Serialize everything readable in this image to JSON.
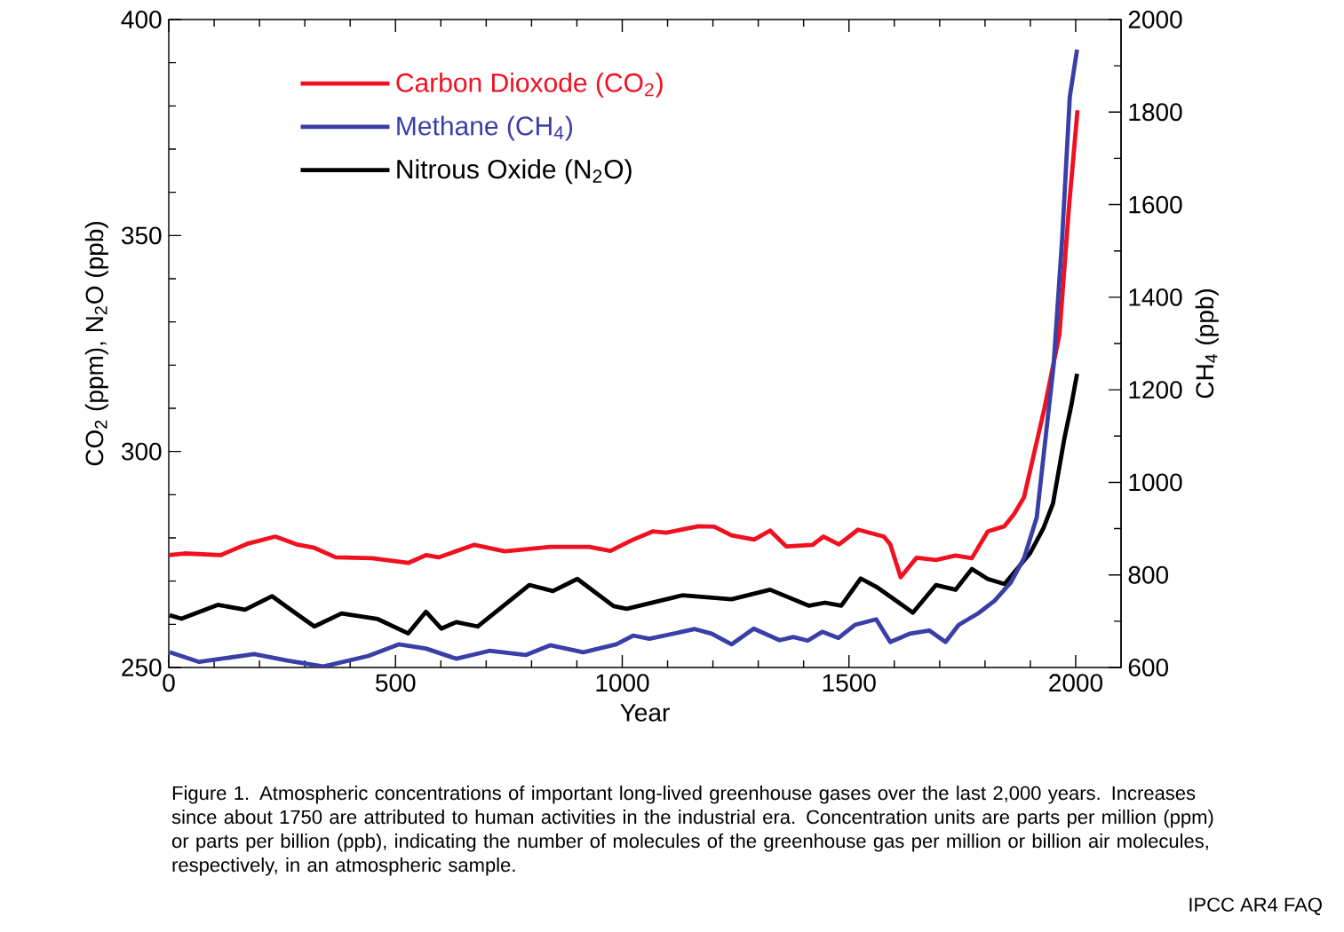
{
  "chart_data": {
    "type": "line",
    "xlabel": "Year",
    "ylabel": "CO$_{2}$ (ppm), N$_{2}$O (ppb)",
    "y2label": "CH$_{4}$ (ppb)",
    "xlim": [
      0,
      2100
    ],
    "xticks": [
      0,
      500,
      1000,
      1500,
      2000
    ],
    "ylim": [
      250,
      400
    ],
    "yticks": [
      250,
      300,
      350,
      400
    ],
    "y2lim": [
      600,
      2000
    ],
    "y2ticks": [
      600,
      800,
      1000,
      1200,
      1400,
      1600,
      1800,
      2000
    ],
    "grid": false,
    "legend": "top left",
    "series": [
      {
        "name": "Carbon Dioxode (CO$_{2}$)",
        "color": "#f01020",
        "x": [
          0,
          35,
          114,
          175,
          235,
          282,
          321,
          368,
          448,
          528,
          567,
          595,
          674,
          741,
          841,
          927,
          974,
          1020,
          1067,
          1097,
          1168,
          1203,
          1241,
          1291,
          1326,
          1362,
          1420,
          1444,
          1478,
          1520,
          1577,
          1591,
          1614,
          1649,
          1692,
          1735,
          1771,
          1806,
          1843,
          1864,
          1886,
          1931,
          1964,
          1985,
          2004
        ],
        "values": [
          276,
          276.4,
          276,
          278.7,
          280.3,
          278.5,
          277.7,
          275.5,
          275.3,
          274.2,
          276,
          275.5,
          278.4,
          276.9,
          277.9,
          277.9,
          277,
          279.4,
          281.5,
          281.2,
          282.7,
          282.6,
          280.6,
          279.6,
          281.7,
          278,
          278.4,
          280.3,
          278.5,
          281.9,
          280.3,
          278.5,
          270.9,
          275.4,
          274.9,
          275.9,
          275.3,
          281.5,
          282.7,
          285.5,
          289.4,
          310,
          327,
          356.4,
          379
        ]
      },
      {
        "name": "Methane (CH$_{4}$)",
        "color": "#3a3fa8",
        "axis": "y2",
        "x": [
          2,
          67,
          188,
          261,
          341,
          440,
          507,
          567,
          634,
          707,
          787,
          841,
          914,
          987,
          1024,
          1060,
          1160,
          1197,
          1241,
          1290,
          1347,
          1377,
          1409,
          1441,
          1477,
          1513,
          1560,
          1591,
          1634,
          1677,
          1713,
          1742,
          1785,
          1821,
          1857,
          1886,
          1914,
          1951,
          1970,
          1987,
          2003
        ],
        "values": [
          633,
          612,
          629,
          615,
          602,
          625,
          650,
          641,
          619,
          636,
          627,
          648,
          633,
          650,
          669,
          662,
          683,
          673,
          650,
          684,
          659,
          666,
          658,
          677,
          664,
          692,
          704,
          655,
          673,
          680,
          655,
          692,
          717,
          744,
          784,
          836,
          924,
          1250,
          1524,
          1833,
          1935
        ]
      },
      {
        "name": "Nitrous Oxide (N$_{2}$O)",
        "color": "#000000",
        "x": [
          2,
          28,
          108,
          168,
          228,
          274,
          321,
          381,
          461,
          528,
          567,
          601,
          634,
          681,
          795,
          847,
          901,
          981,
          1010,
          1132,
          1241,
          1326,
          1412,
          1447,
          1483,
          1526,
          1563,
          1641,
          1692,
          1735,
          1771,
          1806,
          1843,
          1899,
          1929,
          1950,
          1975,
          1990,
          2003
        ],
        "values": [
          262.1,
          261.3,
          264.5,
          263.4,
          266.5,
          263,
          259.5,
          262.5,
          261.2,
          257.9,
          262.9,
          259,
          260.5,
          259.5,
          269.1,
          267.7,
          270.5,
          264.2,
          263.6,
          266.7,
          265.8,
          268,
          264.3,
          265,
          264.3,
          270.6,
          268.5,
          262.7,
          269.1,
          268,
          272.8,
          270.5,
          269.3,
          276.4,
          282.3,
          288,
          303,
          310.5,
          318
        ]
      }
    ],
    "annotations": [
      "Figure 1. Atmospheric concentrations of important long-lived greenhouse gases over the last 2,000 years. Increases since about 1750 are attributed to human activities in the industrial era. Concentration units are parts per million (ppm) or parts per billion (ppb), indicating the number of molecules of the greenhouse gas per million or billion air molecules, respectively, in an atmospheric sample.",
      "IPCC AR4 FAQ"
    ]
  }
}
